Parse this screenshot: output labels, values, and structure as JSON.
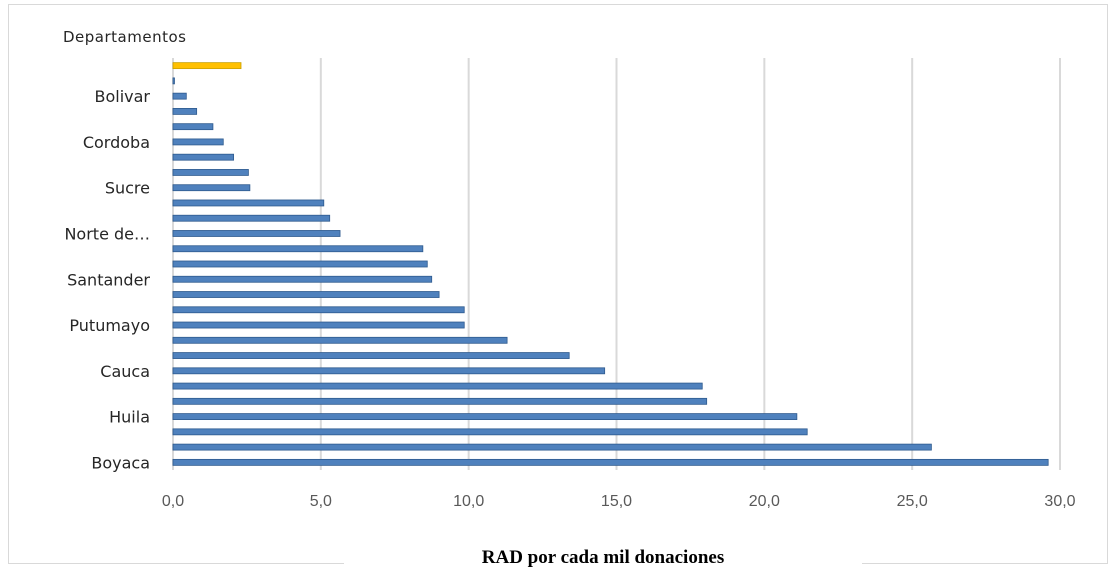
{
  "chart_data": {
    "type": "bar",
    "orientation": "horizontal",
    "ytitle": "Departamentos",
    "xlabel": "RAD por cada mil donaciones",
    "xlim": [
      0,
      30
    ],
    "xticks": [
      "0,0",
      "5,0",
      "10,0",
      "15,0",
      "20,0",
      "25,0",
      "30,0"
    ],
    "categories": [
      "",
      "",
      "Bolivar",
      "",
      "",
      "Cordoba",
      "",
      "",
      "Sucre",
      "",
      "",
      "Norte de…",
      "",
      "",
      "Santander",
      "",
      "",
      "Putumayo",
      "",
      "",
      "Cauca",
      "",
      "",
      "Huila",
      "",
      "",
      "Boyaca"
    ],
    "values": [
      2.3,
      0.05,
      0.45,
      0.8,
      1.35,
      1.7,
      2.05,
      2.55,
      2.6,
      5.1,
      5.3,
      5.65,
      8.45,
      8.6,
      8.75,
      9.0,
      9.85,
      9.85,
      11.3,
      13.4,
      14.6,
      17.9,
      18.05,
      21.1,
      21.45,
      25.65,
      29.6
    ],
    "highlight_index": 0,
    "colors": {
      "bar": "#4F81BD",
      "bar_edge": "#2E5A8E",
      "highlight": "#FFC000",
      "highlight_edge": "#C9A000",
      "grid": "#D9D9D9"
    },
    "grid": true
  }
}
